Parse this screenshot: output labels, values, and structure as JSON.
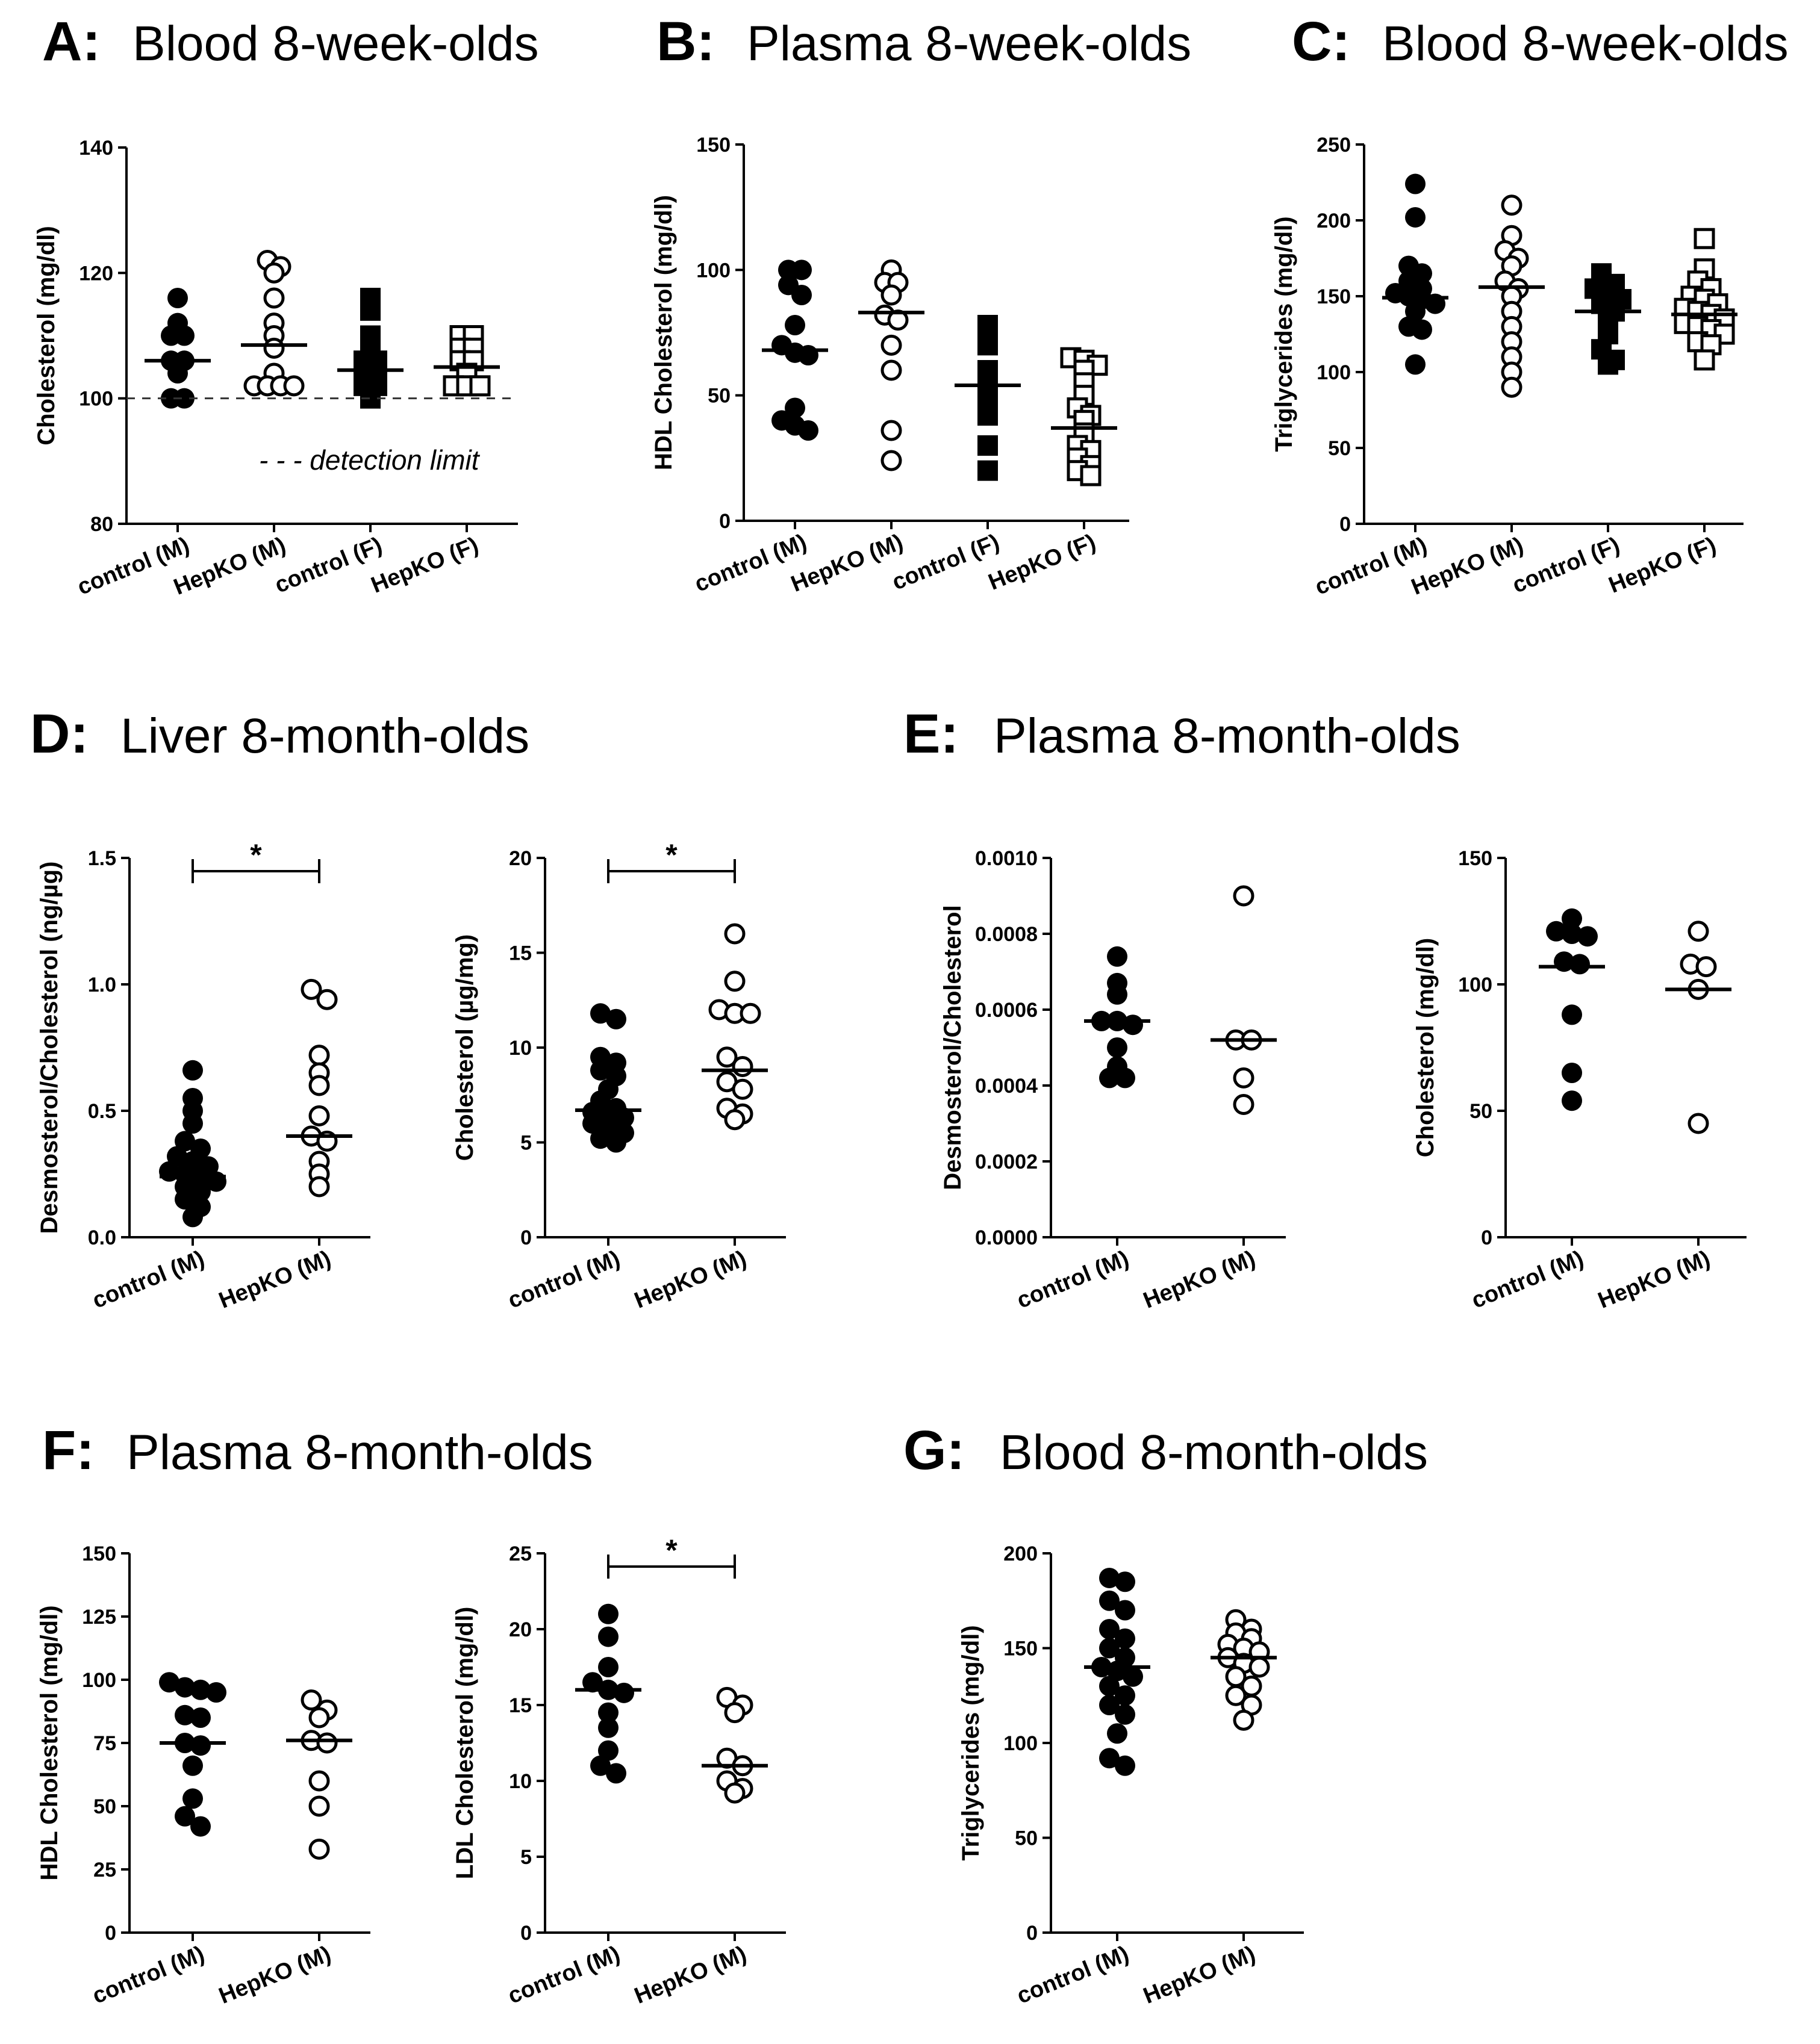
{
  "chart_data": [
    {
      "id": "A",
      "type": "scatter",
      "letter": "A:",
      "title": "Blood 8-week-olds",
      "ylabel": "Cholesterol (mg/dl)",
      "ylim": [
        80,
        140
      ],
      "yticks": [
        80,
        100,
        120,
        140
      ],
      "ytick_labels": [
        "80",
        "100",
        "120",
        "140"
      ],
      "categories": [
        "control (M)",
        "HepKO (M)",
        "control (F)",
        "HepKO (F)"
      ],
      "markers": [
        "circle-filled",
        "circle-open",
        "square-filled",
        "square-open"
      ],
      "values": [
        [
          116,
          112,
          110,
          110,
          106,
          106,
          104,
          100,
          100
        ],
        [
          122,
          121,
          120,
          116,
          112,
          110,
          108,
          104,
          102,
          102,
          102,
          102
        ],
        [
          116,
          114,
          110,
          108,
          106,
          106,
          104,
          104,
          102,
          102,
          100
        ],
        [
          110,
          110,
          108,
          108,
          106,
          106,
          104,
          102,
          102,
          102
        ]
      ],
      "medians": [
        106,
        108.5,
        104.5,
        105
      ],
      "reference_line": {
        "y": 100,
        "style": "dashed"
      },
      "annotation": "- - - detection limit"
    },
    {
      "id": "B",
      "type": "scatter",
      "letter": "B:",
      "title": "Plasma 8-week-olds",
      "ylabel": "HDL Cholesterol (mg/dl)",
      "ylim": [
        0,
        150
      ],
      "yticks": [
        0,
        50,
        100,
        150
      ],
      "ytick_labels": [
        "0",
        "50",
        "100",
        "150"
      ],
      "categories": [
        "control (M)",
        "HepKO (M)",
        "control (F)",
        "HepKO (F)"
      ],
      "markers": [
        "circle-filled",
        "circle-open",
        "square-filled",
        "square-open"
      ],
      "values": [
        [
          100,
          100,
          94,
          90,
          78,
          70,
          67,
          66,
          45,
          40,
          38,
          36
        ],
        [
          100,
          95,
          95,
          90,
          82,
          80,
          70,
          60,
          36,
          24
        ],
        [
          78,
          70,
          60,
          55,
          50,
          42,
          30,
          20
        ],
        [
          65,
          64,
          62,
          60,
          55,
          50,
          45,
          42,
          40,
          35,
          30,
          28,
          25,
          22,
          20,
          18
        ]
      ],
      "medians": [
        68,
        83,
        54,
        37
      ]
    },
    {
      "id": "C",
      "type": "scatter",
      "letter": "C:",
      "title": "Blood 8-week-olds",
      "ylabel": "Triglycerides (mg/dl)",
      "ylim": [
        0,
        250
      ],
      "yticks": [
        0,
        50,
        100,
        150,
        200,
        250
      ],
      "ytick_labels": [
        "0",
        "50",
        "100",
        "150",
        "200",
        "250"
      ],
      "categories": [
        "control (M)",
        "HepKO (M)",
        "control (F)",
        "HepKO (F)"
      ],
      "markers": [
        "circle-filled",
        "circle-open",
        "square-filled",
        "square-open"
      ],
      "values": [
        [
          224,
          202,
          170,
          165,
          160,
          155,
          152,
          150,
          148,
          145,
          140,
          130,
          128,
          105
        ],
        [
          210,
          190,
          180,
          175,
          170,
          160,
          155,
          150,
          140,
          130,
          120,
          110,
          100,
          90
        ],
        [
          165,
          158,
          155,
          150,
          148,
          145,
          140,
          135,
          125,
          115,
          108,
          105
        ],
        [
          188,
          168,
          160,
          155,
          150,
          148,
          145,
          142,
          140,
          138,
          135,
          132,
          130,
          128,
          125,
          120,
          118,
          108
        ]
      ],
      "medians": [
        149,
        156,
        140,
        138
      ]
    },
    {
      "id": "D1",
      "type": "scatter",
      "letter": "D:",
      "title": "Liver 8-month-olds",
      "ylabel": "Desmosterol/Cholesterol (ng/µg)",
      "ylim": [
        0,
        1.5
      ],
      "yticks": [
        0,
        0.5,
        1.0,
        1.5
      ],
      "ytick_labels": [
        "0.0",
        "0.5",
        "1.0",
        "1.5"
      ],
      "categories": [
        "control (M)",
        "HepKO (M)"
      ],
      "markers": [
        "circle-filled",
        "circle-open"
      ],
      "values": [
        [
          0.66,
          0.55,
          0.5,
          0.45,
          0.38,
          0.35,
          0.32,
          0.3,
          0.28,
          0.26,
          0.25,
          0.24,
          0.22,
          0.2,
          0.18,
          0.15,
          0.12,
          0.08
        ],
        [
          0.98,
          0.94,
          0.72,
          0.65,
          0.6,
          0.48,
          0.4,
          0.38,
          0.3,
          0.25,
          0.2
        ]
      ],
      "medians": [
        0.24,
        0.4
      ],
      "significance": "*"
    },
    {
      "id": "D2",
      "type": "scatter",
      "ylabel": "Cholesterol (µg/mg)",
      "ylim": [
        0,
        20
      ],
      "yticks": [
        0,
        5,
        10,
        15,
        20
      ],
      "ytick_labels": [
        "0",
        "5",
        "10",
        "15",
        "20"
      ],
      "categories": [
        "control (M)",
        "HepKO (M)"
      ],
      "markers": [
        "circle-filled",
        "circle-open"
      ],
      "values": [
        [
          11.8,
          11.5,
          9.5,
          9.2,
          8.8,
          8.5,
          7.8,
          7.2,
          6.8,
          6.6,
          6.5,
          6.3,
          6.0,
          5.8,
          5.5,
          5.2,
          5.0
        ],
        [
          16.0,
          13.5,
          12.0,
          11.8,
          11.8,
          9.5,
          9.0,
          8.2,
          7.8,
          6.8,
          6.5,
          6.2
        ]
      ],
      "medians": [
        6.7,
        8.8
      ],
      "significance": "*"
    },
    {
      "id": "E1",
      "type": "scatter",
      "letter": "E:",
      "title": "Plasma 8-month-olds",
      "ylabel": "Desmosterol/Cholesterol",
      "ylim": [
        0,
        0.001
      ],
      "yticks": [
        0,
        0.0002,
        0.0004,
        0.0006,
        0.0008,
        0.001
      ],
      "ytick_labels": [
        "0.0000",
        "0.0002",
        "0.0004",
        "0.0006",
        "0.0008",
        "0.0010"
      ],
      "categories": [
        "control (M)",
        "HepKO (M)"
      ],
      "markers": [
        "circle-filled",
        "circle-open"
      ],
      "values": [
        [
          0.00074,
          0.00067,
          0.00064,
          0.00057,
          0.00057,
          0.00056,
          0.0005,
          0.00045,
          0.00042,
          0.00042
        ],
        [
          0.0009,
          0.00052,
          0.00052,
          0.00042,
          0.00035
        ]
      ],
      "medians": [
        0.00057,
        0.00052
      ]
    },
    {
      "id": "E2",
      "type": "scatter",
      "ylabel": "Cholesterol (mg/dl)",
      "ylim": [
        0,
        150
      ],
      "yticks": [
        0,
        50,
        100,
        150
      ],
      "ytick_labels": [
        "0",
        "50",
        "100",
        "150"
      ],
      "categories": [
        "control (M)",
        "HepKO (M)"
      ],
      "markers": [
        "circle-filled",
        "circle-open"
      ],
      "values": [
        [
          126,
          121,
          120,
          119,
          109,
          108,
          88,
          65,
          54
        ],
        [
          121,
          108,
          107,
          98,
          45
        ]
      ],
      "medians": [
        107,
        98
      ]
    },
    {
      "id": "F1",
      "type": "scatter",
      "letter": "F:",
      "title": "Plasma 8-month-olds",
      "ylabel": "HDL Cholesterol (mg/dl)",
      "ylim": [
        0,
        150
      ],
      "yticks": [
        0,
        25,
        50,
        75,
        100,
        125,
        150
      ],
      "ytick_labels": [
        "0",
        "25",
        "50",
        "75",
        "100",
        "125",
        "150"
      ],
      "categories": [
        "control (M)",
        "HepKO (M)"
      ],
      "markers": [
        "circle-filled",
        "circle-open"
      ],
      "values": [
        [
          99,
          97,
          96,
          95,
          86,
          85,
          75,
          74,
          66,
          53,
          46,
          42
        ],
        [
          92,
          88,
          85,
          76,
          75,
          60,
          50,
          33
        ]
      ],
      "medians": [
        75,
        76
      ]
    },
    {
      "id": "F2",
      "type": "scatter",
      "ylabel": "LDL Cholesterol (mg/dl)",
      "ylim": [
        0,
        25
      ],
      "yticks": [
        0,
        5,
        10,
        15,
        20,
        25
      ],
      "ytick_labels": [
        "0",
        "5",
        "10",
        "15",
        "20",
        "25"
      ],
      "categories": [
        "control (M)",
        "HepKO (M)"
      ],
      "markers": [
        "circle-filled",
        "circle-open"
      ],
      "values": [
        [
          21.0,
          19.5,
          17.5,
          16.5,
          16.0,
          15.8,
          14.5,
          13.5,
          12.0,
          11.0,
          10.5
        ],
        [
          15.5,
          15.0,
          14.5,
          11.5,
          11.0,
          10.0,
          9.5,
          9.2
        ]
      ],
      "medians": [
        16,
        11
      ],
      "significance": "*"
    },
    {
      "id": "G",
      "type": "scatter",
      "letter": "G:",
      "title": "Blood 8-month-olds",
      "ylabel": "Triglycerides (mg/dl)",
      "ylim": [
        0,
        200
      ],
      "yticks": [
        0,
        50,
        100,
        150,
        200
      ],
      "ytick_labels": [
        "0",
        "50",
        "100",
        "150",
        "200"
      ],
      "categories": [
        "control (M)",
        "HepKO (M)"
      ],
      "markers": [
        "circle-filled",
        "circle-open"
      ],
      "values": [
        [
          187,
          185,
          175,
          170,
          160,
          155,
          150,
          145,
          140,
          138,
          135,
          130,
          125,
          120,
          115,
          105,
          92,
          88
        ],
        [
          165,
          160,
          158,
          155,
          152,
          150,
          148,
          145,
          142,
          140,
          135,
          130,
          125,
          120,
          112
        ]
      ],
      "medians": [
        140,
        145
      ]
    }
  ]
}
